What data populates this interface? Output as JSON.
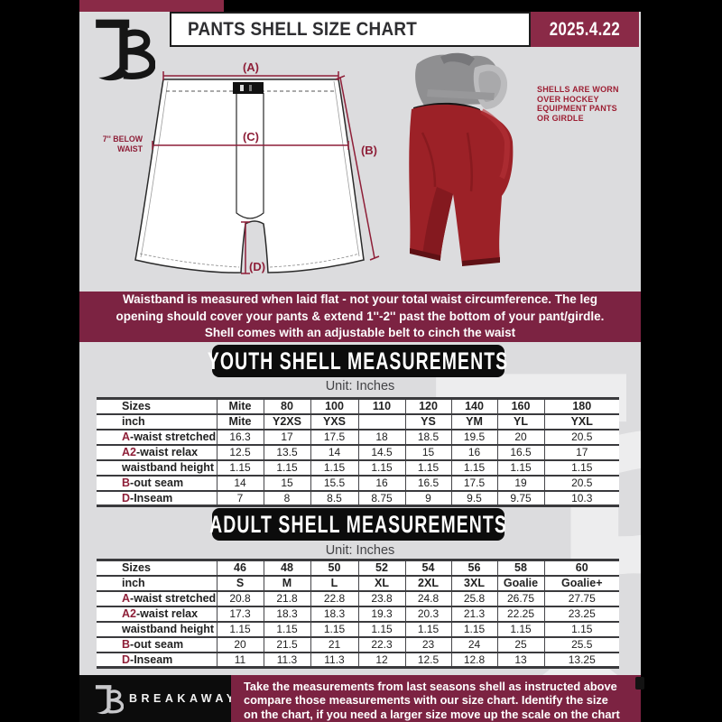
{
  "header": {
    "title": "PANTS SHELL SIZE CHART",
    "date": "2025.4.22"
  },
  "diagram": {
    "label_a": "(A)",
    "label_b": "(B)",
    "label_c": "(C)",
    "label_d": "(D)",
    "below_waist_line1": "7'' BELOW",
    "below_waist_line2": "WAIST",
    "photo_caption_line1": "SHELLS ARE WORN",
    "photo_caption_line2": "OVER HOCKEY",
    "photo_caption_line3": "EQUIPMENT PANTS",
    "photo_caption_line4": "OR GIRDLE"
  },
  "notice": {
    "line1": "Waistband is measured when laid flat - not your total waist circumference. The leg",
    "line2": "opening should cover your pants & extend 1''-2'' past the bottom of your pant/girdle.",
    "line3": "Shell comes with an adjustable belt to cinch the waist"
  },
  "youth": {
    "heading": "YOUTH SHELL MEASUREMENTS",
    "unit": "Unit: Inches",
    "rows": [
      {
        "prefix": "",
        "label": "Sizes",
        "header": true,
        "values": [
          "Mite",
          "80",
          "100",
          "110",
          "120",
          "140",
          "160",
          "180"
        ]
      },
      {
        "prefix": "",
        "label": "inch",
        "header": true,
        "values": [
          "Mite",
          "Y2XS",
          "YXS",
          "",
          "YS",
          "YM",
          "YL",
          "YXL"
        ]
      },
      {
        "prefix": "A",
        "label": "-waist stretched",
        "header": false,
        "values": [
          "16.3",
          "17",
          "17.5",
          "18",
          "18.5",
          "19.5",
          "20",
          "20.5"
        ]
      },
      {
        "prefix": "A2",
        "label": "-waist relax",
        "header": false,
        "values": [
          "12.5",
          "13.5",
          "14",
          "14.5",
          "15",
          "16",
          "16.5",
          "17"
        ]
      },
      {
        "prefix": "",
        "label": "waistband height",
        "header": false,
        "values": [
          "1.15",
          "1.15",
          "1.15",
          "1.15",
          "1.15",
          "1.15",
          "1.15",
          "1.15"
        ]
      },
      {
        "prefix": "B",
        "label": "-out seam",
        "header": false,
        "values": [
          "14",
          "15",
          "15.5",
          "16",
          "16.5",
          "17.5",
          "19",
          "20.5"
        ]
      },
      {
        "prefix": "D",
        "label": "-Inseam",
        "header": false,
        "values": [
          "7",
          "8",
          "8.5",
          "8.75",
          "9",
          "9.5",
          "9.75",
          "10.3"
        ]
      }
    ]
  },
  "adult": {
    "heading": "ADULT SHELL MEASUREMENTS",
    "unit": "Unit: Inches",
    "rows": [
      {
        "prefix": "",
        "label": "Sizes",
        "header": true,
        "values": [
          "46",
          "48",
          "50",
          "52",
          "54",
          "56",
          "58",
          "60"
        ]
      },
      {
        "prefix": "",
        "label": "inch",
        "header": true,
        "values": [
          "S",
          "M",
          "L",
          "XL",
          "2XL",
          "3XL",
          "Goalie",
          "Goalie+"
        ]
      },
      {
        "prefix": "A",
        "label": "-waist stretched",
        "header": false,
        "values": [
          "20.8",
          "21.8",
          "22.8",
          "23.8",
          "24.8",
          "25.8",
          "26.75",
          "27.75"
        ]
      },
      {
        "prefix": "A2",
        "label": "-waist relax",
        "header": false,
        "values": [
          "17.3",
          "18.3",
          "18.3",
          "19.3",
          "20.3",
          "21.3",
          "22.25",
          "23.25"
        ]
      },
      {
        "prefix": "",
        "label": "waistband height",
        "header": false,
        "values": [
          "1.15",
          "1.15",
          "1.15",
          "1.15",
          "1.15",
          "1.15",
          "1.15",
          "1.15"
        ]
      },
      {
        "prefix": "B",
        "label": "-out seam",
        "header": false,
        "values": [
          "20",
          "21.5",
          "21",
          "22.3",
          "23",
          "24",
          "25",
          "25.5"
        ]
      },
      {
        "prefix": "D",
        "label": "-Inseam",
        "header": false,
        "values": [
          "11",
          "11.3",
          "11.3",
          "12",
          "12.5",
          "12.8",
          "13",
          "13.25"
        ]
      }
    ]
  },
  "footer": {
    "brand": "BREAKAWAY",
    "line1": "Take the measurements from last seasons shell as instructed above",
    "line2": "compare those measurements with our size chart. Identify the size",
    "line3": "on the chart, if you need a larger size move up the scale on the chart"
  },
  "colors": {
    "maroon": "#7c2342",
    "maroon_bright": "#8a2a47",
    "page_gray": "#dcdcde",
    "diagram_red": "#8e1f38",
    "caption_red": "#9d1f33",
    "box_black": "#0c0c0c"
  }
}
